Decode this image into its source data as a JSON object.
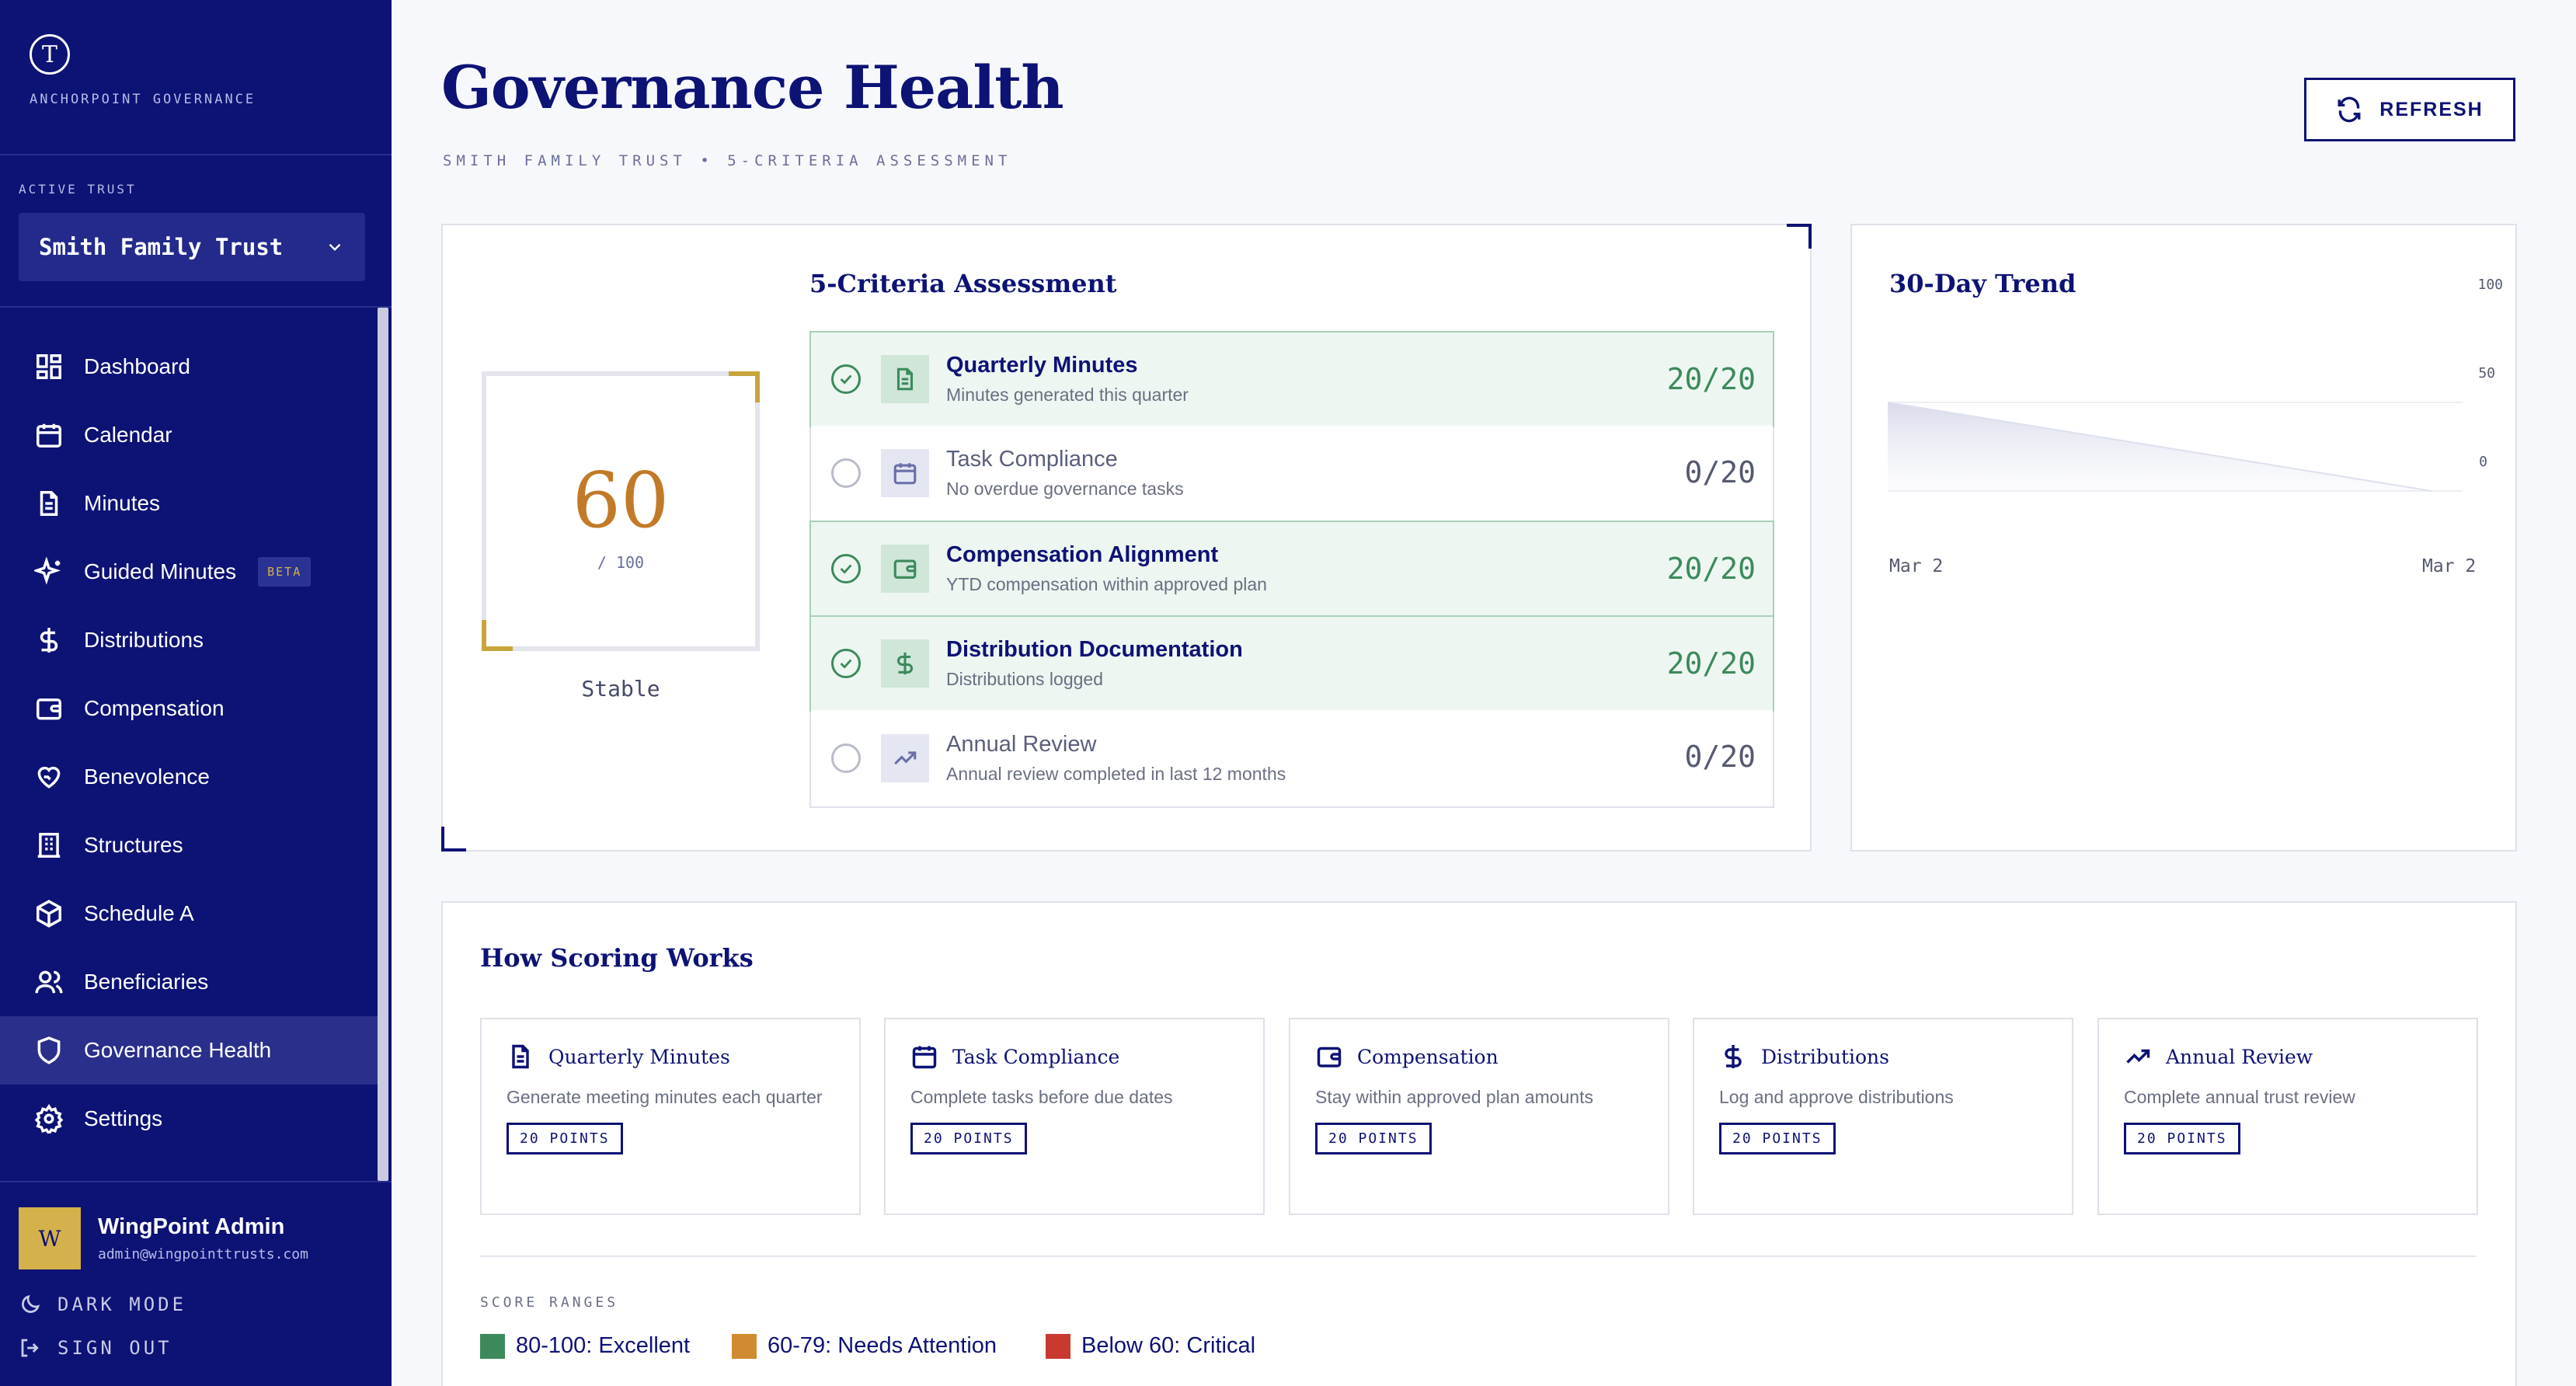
{
  "brand": {
    "logo_letter": "T",
    "name": "ANCHORPOINT GOVERNANCE"
  },
  "sidebar": {
    "active_trust_label": "ACTIVE TRUST",
    "active_trust_value": "Smith Family Trust",
    "items": [
      {
        "label": "Dashboard",
        "icon": "dashboard-icon"
      },
      {
        "label": "Calendar",
        "icon": "calendar-icon"
      },
      {
        "label": "Minutes",
        "icon": "document-icon"
      },
      {
        "label": "Guided Minutes",
        "icon": "sparkle-icon",
        "badge": "BETA"
      },
      {
        "label": "Distributions",
        "icon": "dollar-icon"
      },
      {
        "label": "Compensation",
        "icon": "wallet-icon"
      },
      {
        "label": "Benevolence",
        "icon": "heart-hand-icon"
      },
      {
        "label": "Structures",
        "icon": "building-icon"
      },
      {
        "label": "Schedule A",
        "icon": "box-icon"
      },
      {
        "label": "Beneficiaries",
        "icon": "users-icon"
      },
      {
        "label": "Governance Health",
        "icon": "shield-icon",
        "active": true
      },
      {
        "label": "Settings",
        "icon": "gear-icon"
      }
    ],
    "user": {
      "initial": "W",
      "name": "WingPoint Admin",
      "email": "admin@wingpointtrusts.com"
    },
    "dark_mode_label": "DARK MODE",
    "sign_out_label": "SIGN OUT"
  },
  "header": {
    "title": "Governance Health",
    "subtitle": "SMITH FAMILY TRUST • 5-CRITERIA ASSESSMENT",
    "refresh_label": "REFRESH"
  },
  "score": {
    "value": "60",
    "max": "/ 100",
    "status": "Stable",
    "value_num": 60
  },
  "assessment": {
    "title": "5-Criteria Assessment",
    "criteria": [
      {
        "name": "Quarterly Minutes",
        "desc": "Minutes generated this quarter",
        "score": "20/20",
        "done": true,
        "icon": "document-icon"
      },
      {
        "name": "Task Compliance",
        "desc": "No overdue governance tasks",
        "score": "0/20",
        "done": false,
        "icon": "calendar-icon"
      },
      {
        "name": "Compensation Alignment",
        "desc": "YTD compensation within approved plan",
        "score": "20/20",
        "done": true,
        "icon": "wallet-icon"
      },
      {
        "name": "Distribution Documentation",
        "desc": "Distributions logged",
        "score": "20/20",
        "done": true,
        "icon": "dollar-icon"
      },
      {
        "name": "Annual Review",
        "desc": "Annual review completed in last 12 months",
        "score": "0/20",
        "done": false,
        "icon": "trend-up-icon"
      }
    ]
  },
  "trend": {
    "title": "30-Day Trend",
    "y_ticks": [
      "100",
      "50",
      "0"
    ],
    "x_labels": [
      "Mar 2",
      "Mar 2"
    ]
  },
  "how": {
    "title": "How Scoring Works",
    "cards": [
      {
        "title": "Quarterly Minutes",
        "desc": "Generate meeting minutes each quarter",
        "badge": "20 POINTS",
        "icon": "document-icon"
      },
      {
        "title": "Task Compliance",
        "desc": "Complete tasks before due dates",
        "badge": "20 POINTS",
        "icon": "calendar-icon"
      },
      {
        "title": "Compensation",
        "desc": "Stay within approved plan amounts",
        "badge": "20 POINTS",
        "icon": "wallet-icon"
      },
      {
        "title": "Distributions",
        "desc": "Log and approve distributions",
        "badge": "20 POINTS",
        "icon": "dollar-icon"
      },
      {
        "title": "Annual Review",
        "desc": "Complete annual trust review",
        "badge": "20 POINTS",
        "icon": "trend-up-icon"
      }
    ],
    "ranges_label": "SCORE RANGES",
    "ranges": [
      {
        "label": "80-100: Excellent",
        "color": "#3c8a5c"
      },
      {
        "label": "60-79: Needs Attention",
        "color": "#d08a30"
      },
      {
        "label": "Below 60: Critical",
        "color": "#c83a30"
      }
    ]
  },
  "colors": {
    "brand": "#0d1275",
    "accent_gold": "#c8a43c",
    "success": "#3c8a5c"
  }
}
